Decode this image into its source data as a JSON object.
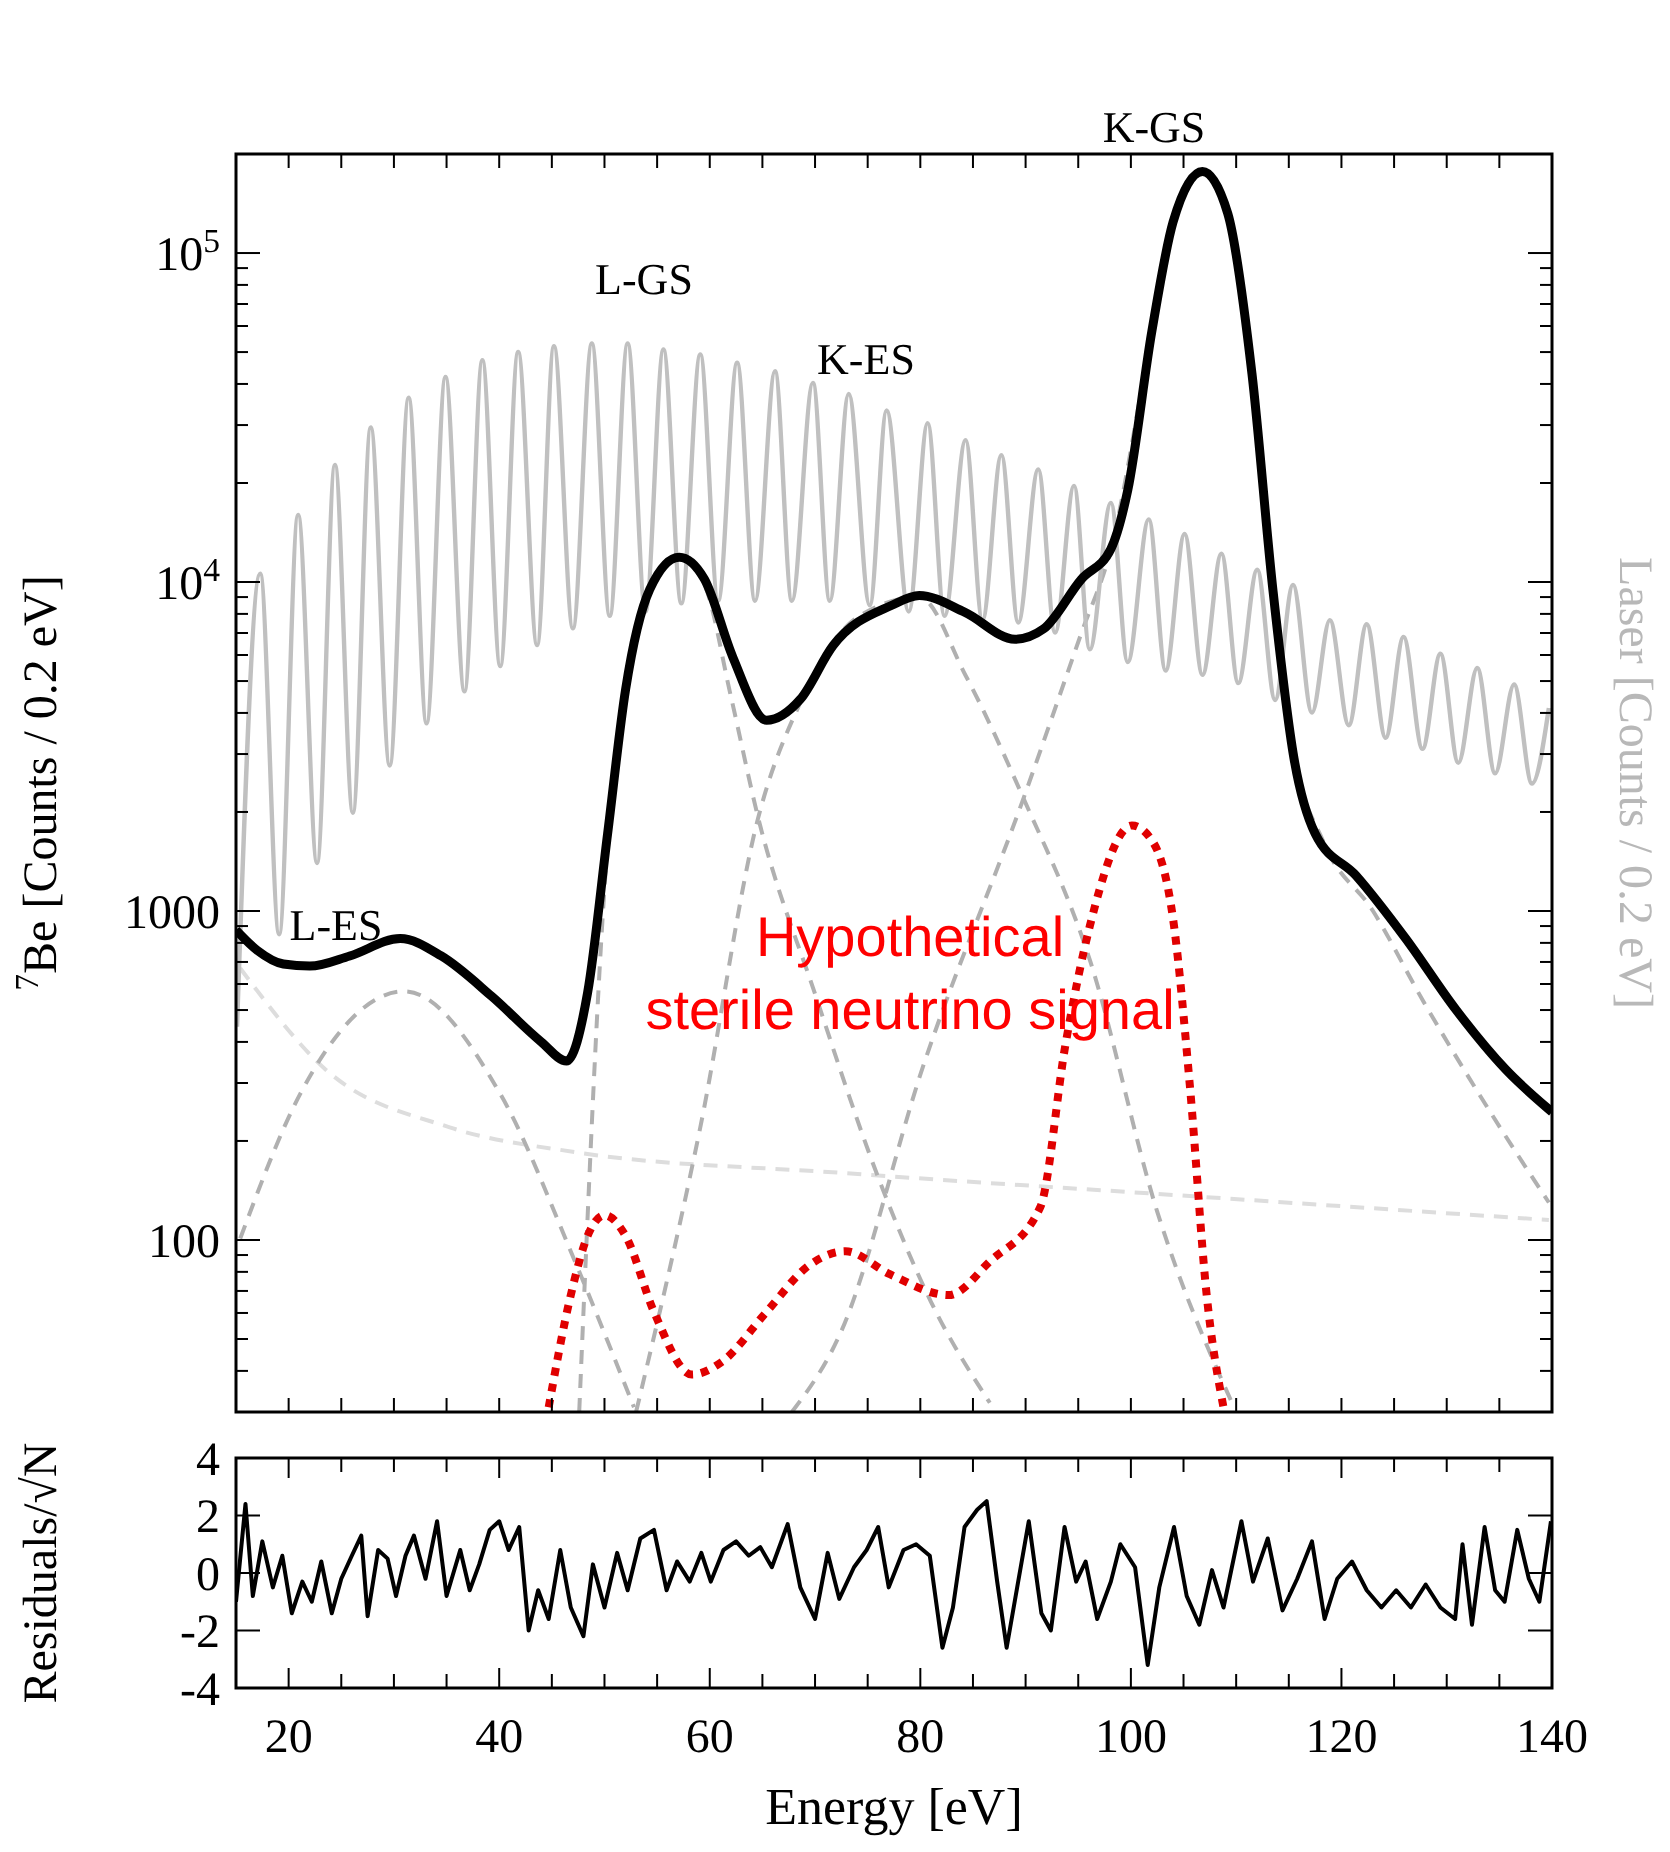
{
  "chart_data": [
    {
      "type": "line",
      "ylabel": "$^{7}$Be [Counts / 0.2 eV]",
      "y2label": "Laser [Counts / 0.2 eV]",
      "log": "y",
      "xlim": [
        15,
        140
      ],
      "ylim": [
        30,
        200000
      ],
      "tick_labels": "y",
      "xticks": [
        {
          "value": 15,
          "label": null
        },
        {
          "value": 20,
          "label": null
        },
        {
          "value": 25,
          "label": null
        },
        {
          "value": 30,
          "label": null
        },
        {
          "value": 35,
          "label": null
        },
        {
          "value": 40,
          "label": null
        },
        {
          "value": 45,
          "label": null
        },
        {
          "value": 50,
          "label": null
        },
        {
          "value": 55,
          "label": null
        },
        {
          "value": 60,
          "label": null
        },
        {
          "value": 65,
          "label": null
        },
        {
          "value": 70,
          "label": null
        },
        {
          "value": 75,
          "label": null
        },
        {
          "value": 80,
          "label": null
        },
        {
          "value": 85,
          "label": null
        },
        {
          "value": 90,
          "label": null
        },
        {
          "value": 95,
          "label": null
        },
        {
          "value": 100,
          "label": null
        },
        {
          "value": 105,
          "label": null
        },
        {
          "value": 110,
          "label": null
        },
        {
          "value": 115,
          "label": null
        },
        {
          "value": 120,
          "label": null
        },
        {
          "value": 125,
          "label": null
        },
        {
          "value": 130,
          "label": null
        },
        {
          "value": 135,
          "label": null
        },
        {
          "value": 140,
          "label": null
        }
      ],
      "yticks": [
        {
          "value": 30,
          "label": null
        },
        {
          "value": 40,
          "label": null
        },
        {
          "value": 50,
          "label": null
        },
        {
          "value": 60,
          "label": null
        },
        {
          "value": 70,
          "label": null
        },
        {
          "value": 80,
          "label": null
        },
        {
          "value": 90,
          "label": null
        },
        {
          "value": 100,
          "label": "100"
        },
        {
          "value": 200,
          "label": null
        },
        {
          "value": 300,
          "label": null
        },
        {
          "value": 400,
          "label": null
        },
        {
          "value": 500,
          "label": null
        },
        {
          "value": 600,
          "label": null
        },
        {
          "value": 700,
          "label": null
        },
        {
          "value": 800,
          "label": null
        },
        {
          "value": 900,
          "label": null
        },
        {
          "value": 1000,
          "label": "1000"
        },
        {
          "value": 2000,
          "label": null
        },
        {
          "value": 3000,
          "label": null
        },
        {
          "value": 4000,
          "label": null
        },
        {
          "value": 5000,
          "label": null
        },
        {
          "value": 6000,
          "label": null
        },
        {
          "value": 7000,
          "label": null
        },
        {
          "value": 8000,
          "label": null
        },
        {
          "value": 9000,
          "label": null
        },
        {
          "value": 10000,
          "label": "10$^{4}$"
        },
        {
          "value": 20000,
          "label": null
        },
        {
          "value": 30000,
          "label": null
        },
        {
          "value": 40000,
          "label": null
        },
        {
          "value": 50000,
          "label": null
        },
        {
          "value": 60000,
          "label": null
        },
        {
          "value": 70000,
          "label": null
        },
        {
          "value": 80000,
          "label": null
        },
        {
          "value": 90000,
          "label": null
        },
        {
          "value": 100000,
          "label": "10$^{5}$"
        },
        {
          "value": 200000,
          "label": null
        }
      ],
      "series": [
        {
          "color": "#000000",
          "line_style": "solid",
          "x": [
            15,
            17,
            19.5,
            22,
            25.8,
            30.6,
            34.5,
            39.3,
            44,
            46.4,
            48.4,
            50.3,
            52,
            54.3,
            57.1,
            59.5,
            62.2,
            65.4,
            68.6,
            71.7,
            77.3,
            79.9,
            84.2,
            89,
            91.7,
            95.3,
            98.1,
            99.7,
            102,
            104,
            106.8,
            109.2,
            111.5,
            113.5,
            115.5,
            117.5,
            121.4,
            126.1,
            130.9,
            135.6,
            140
          ],
          "values": [
            875,
            760,
            690,
            680,
            730,
            825,
            730,
            550,
            400,
            350,
            565,
            1720,
            4700,
            9500,
            11900,
            10200,
            5900,
            3800,
            4400,
            6400,
            8500,
            9100,
            8100,
            6700,
            7200,
            10200,
            12600,
            19000,
            58000,
            124000,
            177000,
            132000,
            43000,
            9400,
            2900,
            1720,
            1280,
            825,
            500,
            330,
            245
          ]
        },
        {
          "color": "#c0c0c0",
          "line_style": "solid",
          "x": [
            15.1,
            17.3,
            19.1,
            20.9,
            22.7,
            24.4,
            26.1,
            27.8,
            29.6,
            31.4,
            33.1,
            34.9,
            36.7,
            38.4,
            40.1,
            41.8,
            43.6,
            45.2,
            47,
            48.8,
            50.5,
            52.2,
            53.9,
            55.6,
            57.3,
            59.1,
            60.8,
            62.6,
            64.3,
            66.2,
            67.8,
            69.8,
            71.4,
            73.2,
            75.2,
            76.8,
            78.9,
            80.7,
            82.3,
            84.3,
            85.9,
            87.7,
            89.3,
            91.2,
            92.8,
            94.6,
            96.1,
            98.1,
            99.7,
            101.7,
            103.3,
            105.1,
            106.8,
            108.6,
            110.2,
            112,
            113.7,
            115.4,
            117.2,
            118.9,
            120.7,
            122.4,
            124.2,
            125.9,
            127.7,
            129.4,
            131.1,
            132.9,
            134.6,
            136.4,
            138.1,
            139.7
          ],
          "values": [
            445,
            10600,
            850,
            16000,
            1400,
            22700,
            1990,
            29500,
            2770,
            36300,
            3720,
            42000,
            4650,
            47200,
            5550,
            50000,
            6430,
            52100,
            7230,
            53100,
            7890,
            53100,
            8130,
            50900,
            8610,
            49200,
            8770,
            46400,
            8770,
            43700,
            8770,
            40300,
            8770,
            37300,
            8500,
            33200,
            8130,
            30400,
            7890,
            27000,
            7660,
            24300,
            7530,
            22000,
            7020,
            19600,
            6240,
            17400,
            5710,
            15500,
            5380,
            14000,
            5220,
            12200,
            4930,
            10900,
            4380,
            9800,
            4010,
            7660,
            3670,
            7440,
            3360,
            6810,
            3110,
            6050,
            2820,
            5480,
            2620,
            4880,
            2440,
            4140
          ]
        },
        {
          "color": "#e00000",
          "line_style": "dotted",
          "x": [
            44.7,
            46.8,
            48.4,
            50,
            52,
            54.7,
            58.3,
            61.1,
            65.4,
            69.4,
            72.9,
            77.1,
            82.7,
            86.6,
            91.4,
            93.8,
            96.1,
            100.1,
            102.1,
            104.1,
            105.6,
            107.2,
            108.8
          ],
          "values": [
            31,
            68,
            103,
            119,
            103,
            60.5,
            39,
            42.5,
            60.5,
            83.6,
            92.4,
            78.7,
            68,
            86,
            126,
            395,
            900,
            1820,
            1620,
            900,
            295,
            68,
            31
          ]
        },
        {
          "color": "#b0b0b0",
          "line_style": "dashed",
          "x": [
            15.4,
            21.1,
            31,
            40.1,
            47.2,
            52.8
          ],
          "values": [
            101,
            278,
            570,
            278,
            86,
            31
          ]
        },
        {
          "color": "#b0b0b0",
          "line_style": "dashed",
          "x": [
            47.6,
            50.3,
            52,
            54.3,
            57.1,
            59.5,
            62,
            64.6,
            70,
            76,
            81,
            86.6
          ],
          "values": [
            30,
            1600,
            4600,
            9300,
            11800,
            9800,
            4500,
            1920,
            560,
            155,
            65,
            32
          ]
        },
        {
          "color": "#b0b0b0",
          "line_style": "dashed",
          "x": [
            53,
            59.1,
            64.6,
            68.6,
            74,
            79.9,
            84.3,
            89.8,
            96.1,
            102.5,
            109.6
          ],
          "values": [
            30,
            220,
            1920,
            4300,
            7800,
            9000,
            5200,
            2200,
            710,
            122,
            32
          ]
        },
        {
          "color": "#b0b0b0",
          "line_style": "dashed",
          "x": [
            67.8,
            72.4,
            80.3,
            89.8,
            95.3,
            98.1,
            102,
            104,
            106.8,
            109.2,
            111.5,
            113.5,
            115.5,
            118.3,
            123,
            127.8,
            133,
            139.7
          ],
          "values": [
            30,
            52,
            340,
            2200,
            7000,
            12600,
            58000,
            124000,
            177000,
            132000,
            43000,
            9400,
            3000,
            1620,
            1000,
            530,
            280,
            130
          ]
        },
        {
          "color": "#dddddd",
          "line_style": "dashed",
          "x": [
            15.4,
            23.5,
            35.3,
            47.2,
            72.4,
            104.1,
            139.7
          ],
          "values": [
            670,
            330,
            220,
            185,
            160,
            137,
            115
          ]
        }
      ],
      "annotations": [
        "L-ES",
        "L-GS",
        "K-ES",
        "K-GS",
        "Hypothetical sterile neutrino signal"
      ]
    },
    {
      "type": "line",
      "xlabel": "Energy [eV]",
      "ylabel": "Residuals/√N",
      "xlim": [
        15,
        140
      ],
      "ylim": [
        -4,
        4
      ],
      "yticks": [
        -4,
        -2,
        0,
        2,
        4
      ],
      "xticks": [
        {
          "value": 15,
          "label": null
        },
        {
          "value": 20,
          "label": "20"
        },
        {
          "value": 25,
          "label": null
        },
        {
          "value": 30,
          "label": null
        },
        {
          "value": 35,
          "label": null
        },
        {
          "value": 40,
          "label": "40"
        },
        {
          "value": 45,
          "label": null
        },
        {
          "value": 50,
          "label": null
        },
        {
          "value": 55,
          "label": null
        },
        {
          "value": 60,
          "label": "60"
        },
        {
          "value": 65,
          "label": null
        },
        {
          "value": 70,
          "label": null
        },
        {
          "value": 75,
          "label": null
        },
        {
          "value": 80,
          "label": "80"
        },
        {
          "value": 85,
          "label": null
        },
        {
          "value": 90,
          "label": null
        },
        {
          "value": 95,
          "label": null
        },
        {
          "value": 100,
          "label": "100"
        },
        {
          "value": 105,
          "label": null
        },
        {
          "value": 110,
          "label": null
        },
        {
          "value": 115,
          "label": null
        },
        {
          "value": 120,
          "label": "120"
        },
        {
          "value": 125,
          "label": null
        },
        {
          "value": 130,
          "label": null
        },
        {
          "value": 135,
          "label": null
        },
        {
          "value": 140,
          "label": "140"
        }
      ],
      "series": [
        {
          "color": "#000000",
          "line_style": "solid",
          "x": [
            15,
            15.9,
            16.6,
            17.5,
            18.5,
            19.4,
            20.3,
            21.3,
            22.2,
            23.1,
            24.1,
            25,
            26,
            26.9,
            27.5,
            28.5,
            29.4,
            30.2,
            31.1,
            31.9,
            33,
            34.1,
            35,
            36.3,
            37.2,
            38.1,
            39.1,
            40,
            40.9,
            41.9,
            42.8,
            43.7,
            44.7,
            45.8,
            46.8,
            48,
            48.9,
            50,
            51.2,
            52.2,
            53.4,
            54.7,
            55.9,
            56.9,
            58.1,
            59.2,
            60.1,
            61.3,
            62.5,
            63.7,
            64.8,
            65.9,
            67.4,
            68.6,
            70,
            71.2,
            72.3,
            73.7,
            74.9,
            76,
            77,
            78.4,
            79.6,
            80.9,
            82.1,
            83.1,
            84.2,
            85.4,
            86.3,
            87.3,
            88.2,
            89.2,
            90.3,
            91.5,
            92.4,
            93.7,
            94.8,
            95.7,
            96.8,
            98.1,
            99,
            100.4,
            101.6,
            102.7,
            104.1,
            105.3,
            106.5,
            107.7,
            108.8,
            110.5,
            111.6,
            113,
            114.4,
            115.8,
            117.2,
            118.4,
            119.6,
            121,
            122.4,
            123.8,
            125.2,
            126.6,
            128,
            129.4,
            130.8,
            131.5,
            132.4,
            133.6,
            134.6,
            135.5,
            136.7,
            137.8,
            138.8,
            139.9
          ],
          "values": [
            -1,
            2.4,
            -0.8,
            1.1,
            -0.5,
            0.6,
            -1.4,
            -0.3,
            -1,
            0.4,
            -1.4,
            -0.2,
            0.6,
            1.3,
            -1.5,
            0.8,
            0.5,
            -0.8,
            0.6,
            1.3,
            -0.2,
            1.8,
            -0.8,
            0.8,
            -0.6,
            0.3,
            1.5,
            1.8,
            0.8,
            1.6,
            -2,
            -0.6,
            -1.6,
            0.8,
            -1.2,
            -2.2,
            0.3,
            -1.2,
            0.7,
            -0.6,
            1.2,
            1.5,
            -0.6,
            0.4,
            -0.3,
            0.7,
            -0.3,
            0.8,
            1.1,
            0.6,
            0.9,
            0.2,
            1.7,
            -0.5,
            -1.6,
            0.7,
            -0.9,
            0.2,
            0.8,
            1.6,
            -0.5,
            0.8,
            1,
            0.6,
            -2.6,
            -1.2,
            1.6,
            2.2,
            2.5,
            -0.3,
            -2.6,
            -0.5,
            1.8,
            -1.4,
            -2,
            1.6,
            -0.3,
            0.4,
            -1.6,
            -0.3,
            1,
            0.2,
            -3.2,
            -0.5,
            1.6,
            -0.8,
            -1.8,
            0.1,
            -1.2,
            1.8,
            -0.3,
            1.2,
            -1.3,
            -0.2,
            1.1,
            -1.6,
            -0.2,
            0.4,
            -0.6,
            -1.2,
            -0.6,
            -1.2,
            -0.4,
            -1.2,
            -1.6,
            1,
            -1.8,
            1.6,
            -0.6,
            -1,
            1.5,
            -0.2,
            -1,
            1.8
          ]
        }
      ]
    }
  ]
}
